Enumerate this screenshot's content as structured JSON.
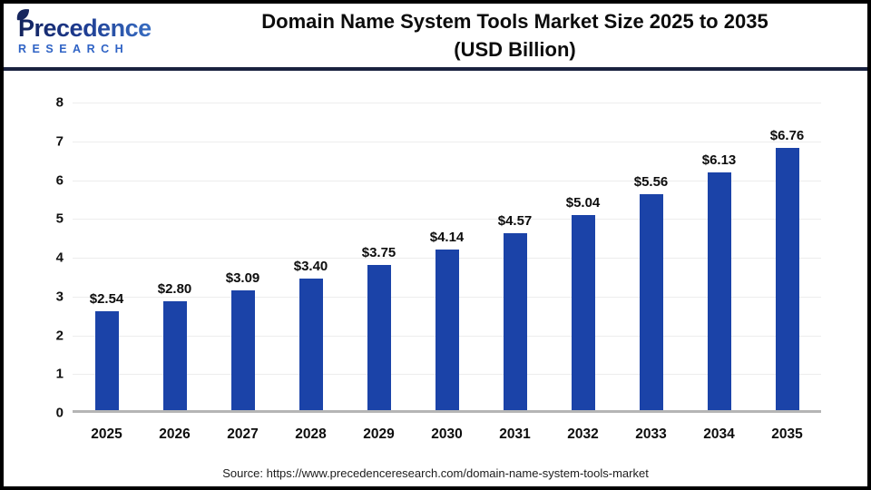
{
  "header": {
    "logo": {
      "name": "Precedence",
      "subname": "RESEARCH"
    },
    "title_line1": "Domain Name System Tools Market Size 2025 to 2035",
    "title_line2": "(USD Billion)"
  },
  "chart_data": {
    "type": "bar",
    "title": "Domain Name System Tools Market Size 2025 to 2035 (USD Billion)",
    "categories": [
      "2025",
      "2026",
      "2027",
      "2028",
      "2029",
      "2030",
      "2031",
      "2032",
      "2033",
      "2034",
      "2035"
    ],
    "values": [
      2.54,
      2.8,
      3.09,
      3.4,
      3.75,
      4.14,
      4.57,
      5.04,
      5.56,
      6.13,
      6.76
    ],
    "value_labels": [
      "$2.54",
      "$2.80",
      "$3.09",
      "$3.40",
      "$3.75",
      "$4.14",
      "$4.57",
      "$5.04",
      "$5.56",
      "$6.13",
      "$6.76"
    ],
    "xlabel": "",
    "ylabel": "",
    "ylim": [
      0,
      8
    ],
    "ytick_step": 1,
    "grid": true,
    "legend": "none",
    "bar_color": "#1b43a8"
  },
  "footer": {
    "source": "Source: https://www.precedenceresearch.com/domain-name-system-tools-market"
  },
  "colors": {
    "bar": "#1b43a8",
    "header_rule": "#1a2240",
    "page_border": "#000000",
    "axis_line": "#b5b5b5",
    "gridline": "#ededed",
    "logo_dark": "#13235c",
    "logo_light": "#3f7bd0"
  }
}
